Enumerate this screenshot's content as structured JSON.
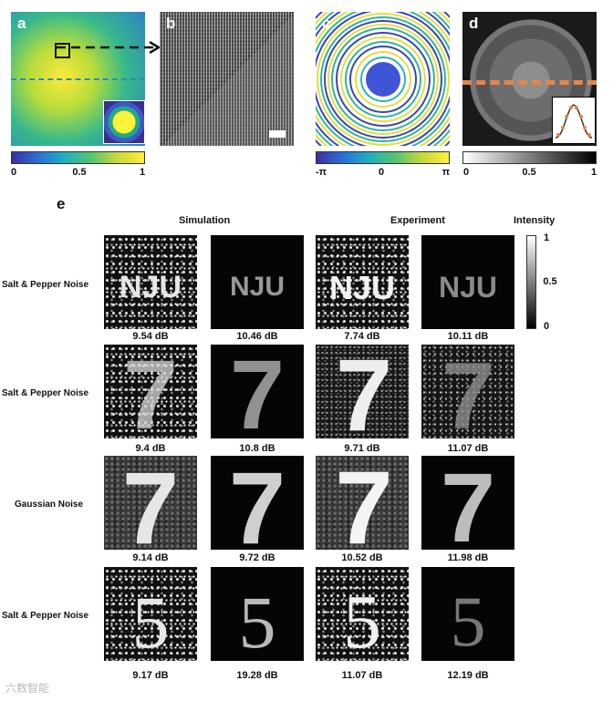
{
  "panels": {
    "a": "a",
    "b": "b",
    "c": "c",
    "d": "d",
    "e": "e"
  },
  "colorbars": {
    "a": {
      "ticks": [
        "0",
        "0.5",
        "1"
      ]
    },
    "c": {
      "ticks": [
        "-π",
        "0",
        "π"
      ]
    },
    "d": {
      "ticks": [
        "0",
        "0.5",
        "1"
      ]
    }
  },
  "colors": {
    "arrow": "#111111",
    "dash_a": "#2e8fa8",
    "dash_d": "#e8844a"
  },
  "section_e": {
    "headers": {
      "simulation": "Simulation",
      "experiment": "Experiment",
      "intensity": "Intensity"
    },
    "intensity_ticks": [
      "1",
      "0.5",
      "0"
    ],
    "rows": [
      {
        "label": "Salt & Pepper Noise",
        "glyph": "NJU",
        "values": [
          "9.54 dB",
          "10.46 dB",
          "7.74 dB",
          "10.11 dB"
        ]
      },
      {
        "label": "Salt & Pepper Noise",
        "glyph": "7",
        "values": [
          "9.4 dB",
          "10.8 dB",
          "9.71 dB",
          "11.07 dB"
        ]
      },
      {
        "label": "Gaussian Noise",
        "glyph": "7",
        "values": [
          "9.14 dB",
          "9.72 dB",
          "10.52 dB",
          "11.98 dB"
        ]
      },
      {
        "label": "Salt & Pepper Noise",
        "glyph": "5",
        "values": [
          "9.17 dB",
          "19.28 dB",
          "11.07 dB",
          "12.19 dB"
        ]
      }
    ]
  },
  "watermark": "六数智能"
}
